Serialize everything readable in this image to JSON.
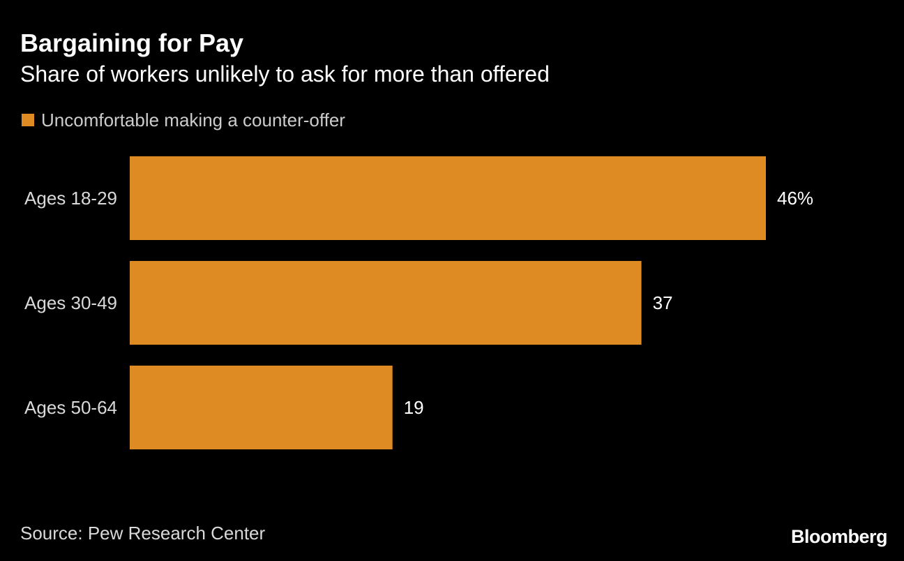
{
  "chart_data": {
    "type": "bar",
    "orientation": "horizontal",
    "title": "Bargaining for Pay",
    "subtitle": "Share of workers unlikely to ask for more than offered",
    "categories": [
      "Ages 18-29",
      "Ages 30-49",
      "Ages 50-64"
    ],
    "series": [
      {
        "name": "Uncomfortable making a counter-offer",
        "values": [
          46,
          37,
          19
        ],
        "color": "#DE8B24"
      }
    ],
    "value_labels": [
      "46%",
      "37",
      "19"
    ],
    "xlim": [
      0,
      46
    ],
    "grid": false,
    "legend_position": "top-left"
  },
  "footer": {
    "source": "Source: Pew Research Center",
    "brand": "Bloomberg"
  },
  "colors": {
    "background": "#000000",
    "bar": "#DE8B24",
    "text": "#FFFFFF",
    "muted_text": "#D9D9D9"
  }
}
